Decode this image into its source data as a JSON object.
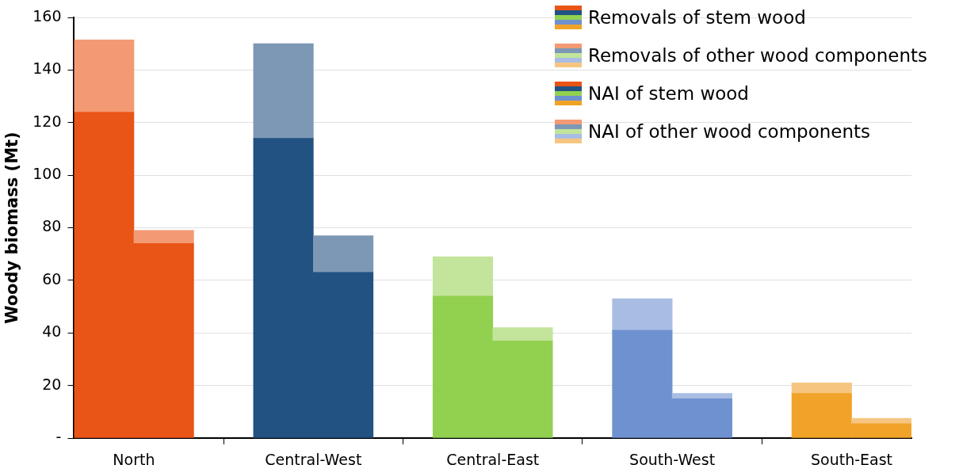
{
  "chart_data": {
    "type": "bar",
    "stacked": true,
    "ylabel": "Woody biomass (Mt)",
    "categories": [
      "North",
      null,
      null,
      "Central-West",
      null,
      null,
      "Central-East",
      null,
      null,
      "South-West",
      null,
      null,
      "South-East",
      null
    ],
    "series": [
      {
        "name": "Removals  of stem wood",
        "colors": [
          null,
          "#e95417",
          null,
          null,
          "#215282",
          null,
          null,
          "#92d050",
          null,
          null,
          "#6e91cf",
          null,
          null,
          "#f0a328"
        ],
        "values": [
          null,
          74,
          null,
          null,
          63,
          null,
          null,
          37,
          null,
          null,
          15,
          null,
          null,
          5.5
        ]
      },
      {
        "name": "Removals  of other wood components",
        "colors": [
          null,
          "#f39a74",
          null,
          null,
          "#7d98b5",
          null,
          null,
          "#c2e49b",
          null,
          null,
          "#a9bde3",
          null,
          null,
          "#f6c680"
        ],
        "values": [
          null,
          5,
          null,
          null,
          14,
          null,
          null,
          5,
          null,
          null,
          2,
          null,
          null,
          2
        ]
      },
      {
        "name": "NAI of stem wood",
        "colors": [
          "#e95417",
          null,
          null,
          "#215282",
          null,
          null,
          "#92d050",
          null,
          null,
          "#6e91cf",
          null,
          null,
          "#f0a328",
          null
        ],
        "values": [
          124,
          null,
          null,
          114,
          null,
          null,
          54,
          null,
          null,
          41,
          null,
          null,
          17,
          null
        ]
      },
      {
        "name": "NAI of other wood components",
        "colors": [
          "#f39a74",
          null,
          null,
          "#7d98b5",
          null,
          null,
          "#c2e49b",
          null,
          null,
          "#a9bde3",
          null,
          null,
          "#f6c680",
          null
        ],
        "values": [
          27.5,
          null,
          null,
          36,
          null,
          null,
          15,
          null,
          null,
          12,
          null,
          null,
          4,
          null
        ]
      }
    ],
    "ylim": [
      0,
      160
    ],
    "yticks": [
      {
        "value": 0,
        "label": "-"
      },
      20,
      40,
      60,
      80,
      100,
      120,
      140,
      160
    ],
    "grid": "y",
    "legend": "top right"
  }
}
